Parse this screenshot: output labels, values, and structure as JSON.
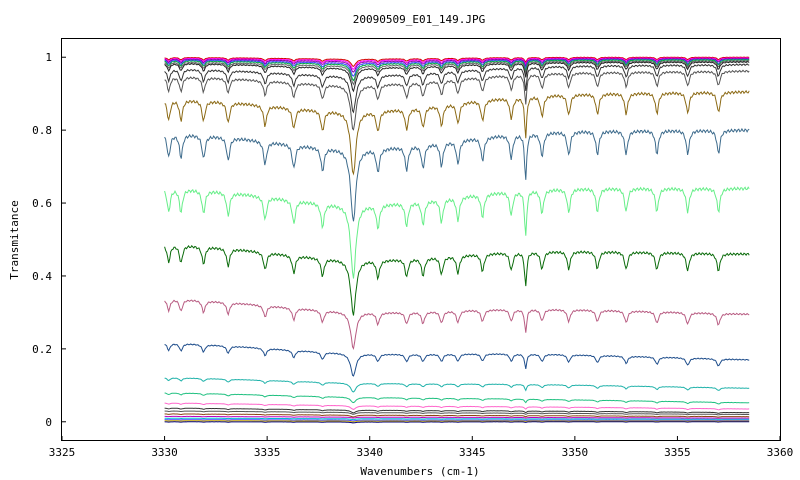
{
  "chart_data": {
    "type": "line",
    "title": "20090509_E01_149.JPG",
    "xlabel": "Wavenumbers (cm-1)",
    "ylabel": "Transmitance",
    "xlim": [
      3325,
      3360
    ],
    "ylim": [
      -0.05,
      1.05
    ],
    "grid": false,
    "x_ticks": [
      "3325",
      "3330",
      "3335",
      "3340",
      "3345",
      "3350",
      "3355",
      "3360"
    ],
    "y_ticks": [
      "0",
      "0.2",
      "0.4",
      "0.6",
      "0.8",
      "1"
    ],
    "x_range": [
      3330,
      3358.5
    ],
    "lines": [
      3330.2,
      3330.8,
      3331.9,
      3333.1,
      3334.9,
      3336.3,
      3337.7,
      3339.2,
      3340.4,
      3341.8,
      3342.6,
      3343.5,
      3344.3,
      3345.5,
      3346.9,
      3347.6,
      3348.4,
      3349.7,
      3351.1,
      3352.5,
      3354.0,
      3355.5,
      3357.0
    ],
    "series": [
      {
        "color": "#d40000",
        "start": 1.0,
        "end": 1.0,
        "depth": 0.008
      },
      {
        "color": "#ff00ff",
        "start": 0.998,
        "end": 0.998,
        "depth": 0.01
      },
      {
        "color": "#8800aa",
        "start": 0.996,
        "end": 0.996,
        "depth": 0.012
      },
      {
        "color": "#4444ff",
        "start": 0.994,
        "end": 0.994,
        "depth": 0.015
      },
      {
        "color": "#00aa44",
        "start": 0.992,
        "end": 0.993,
        "depth": 0.018
      },
      {
        "color": "#666666",
        "start": 0.988,
        "end": 0.99,
        "depth": 0.02
      },
      {
        "color": "#222222",
        "start": 0.985,
        "end": 0.987,
        "depth": 0.025
      },
      {
        "color": "#333333",
        "start": 0.97,
        "end": 0.98,
        "depth": 0.04
      },
      {
        "color": "#555555",
        "start": 0.95,
        "end": 0.962,
        "depth": 0.05
      },
      {
        "color": "#8b6914",
        "start": 0.888,
        "end": 0.905,
        "depth": 0.07
      },
      {
        "color": "#3d6b8c",
        "start": 0.795,
        "end": 0.8,
        "depth": 0.08
      },
      {
        "color": "#66ee88",
        "start": 0.645,
        "end": 0.64,
        "depth": 0.08
      },
      {
        "color": "#0a6b0a",
        "start": 0.49,
        "end": 0.46,
        "depth": 0.06
      },
      {
        "color": "#b85c82",
        "start": 0.34,
        "end": 0.295,
        "depth": 0.04
      },
      {
        "color": "#1f4e8c",
        "start": 0.218,
        "end": 0.17,
        "depth": 0.025
      },
      {
        "color": "#20b2aa",
        "start": 0.122,
        "end": 0.092,
        "depth": 0.01
      },
      {
        "color": "#20c080",
        "start": 0.08,
        "end": 0.052,
        "depth": 0.006
      },
      {
        "color": "#ff66cc",
        "start": 0.052,
        "end": 0.035,
        "depth": 0.004
      },
      {
        "color": "#333333",
        "start": 0.038,
        "end": 0.025,
        "depth": 0.003
      },
      {
        "color": "#555555",
        "start": 0.03,
        "end": 0.02,
        "depth": 0.002
      },
      {
        "color": "#8b4513",
        "start": 0.022,
        "end": 0.014,
        "depth": 0.002
      },
      {
        "color": "#c000c0",
        "start": 0.015,
        "end": 0.01,
        "depth": 0.001
      },
      {
        "color": "#00bcd4",
        "start": 0.01,
        "end": 0.007,
        "depth": 0.001
      },
      {
        "color": "#4444ff",
        "start": 0.006,
        "end": 0.004,
        "depth": 0.001
      },
      {
        "color": "#e0c000",
        "start": 0.003,
        "end": 0.002,
        "depth": 0.001
      },
      {
        "color": "#000080",
        "start": 0.0,
        "end": 0.0,
        "depth": 0.001
      }
    ]
  }
}
